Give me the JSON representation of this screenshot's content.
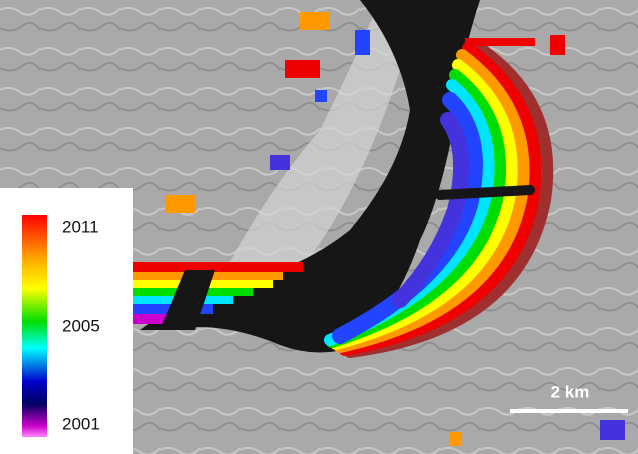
{
  "legend": {
    "labels": [
      "2011",
      "2005",
      "2001"
    ]
  },
  "scale_bar": {
    "label": "2 km"
  }
}
